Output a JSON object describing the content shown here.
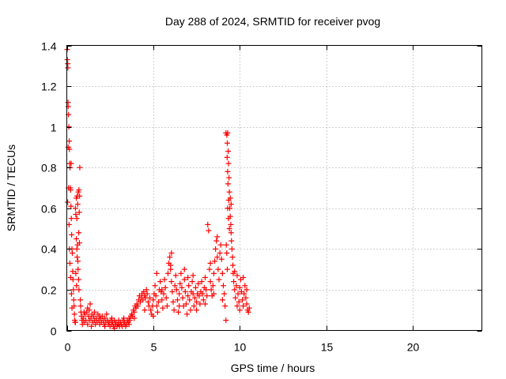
{
  "chart_data": {
    "type": "scatter",
    "title": "Day 288 of 2024, SRMTID for receiver pvog",
    "xlabel": "GPS time / hours",
    "ylabel": "SRMTID / TECUs",
    "xlim": [
      0,
      24
    ],
    "ylim": [
      0,
      1.4
    ],
    "xticks": [
      0,
      5,
      10,
      15,
      20
    ],
    "xtick_labels": [
      "0",
      "5",
      "10",
      "15",
      "20"
    ],
    "yticks": [
      0,
      0.2,
      0.4,
      0.6,
      0.8,
      1,
      1.2,
      1.4
    ],
    "ytick_labels": [
      "0",
      "0.2",
      "0.4",
      "0.6",
      "0.8",
      "1",
      "1.2",
      "1.4"
    ],
    "grid": true,
    "marker": "+",
    "marker_color": "#ff0000",
    "series": [
      {
        "name": "SRMTID",
        "points": [
          [
            0.02,
            1.38
          ],
          [
            0.03,
            1.33
          ],
          [
            0.05,
            1.31
          ],
          [
            0.06,
            1.29
          ],
          [
            0.07,
            1.12
          ],
          [
            0.08,
            1.1
          ],
          [
            0.1,
            1.06
          ],
          [
            0.12,
            1.0
          ],
          [
            0.14,
            0.93
          ],
          [
            0.15,
            0.89
          ],
          [
            0.17,
            0.82
          ],
          [
            0.18,
            0.8
          ],
          [
            0.2,
            0.7
          ],
          [
            0.22,
            0.69
          ],
          [
            0.24,
            0.61
          ],
          [
            0.26,
            0.55
          ],
          [
            0.28,
            0.47
          ],
          [
            0.3,
            0.4
          ],
          [
            0.32,
            0.38
          ],
          [
            0.34,
            0.29
          ],
          [
            0.36,
            0.25
          ],
          [
            0.38,
            0.2
          ],
          [
            0.4,
            0.15
          ],
          [
            0.42,
            0.12
          ],
          [
            0.44,
            0.08
          ],
          [
            0.46,
            0.05
          ],
          [
            0.48,
            0.04
          ],
          [
            0.5,
            0.04
          ],
          [
            0.05,
            0.63
          ],
          [
            0.08,
            0.9
          ],
          [
            0.1,
            0.7
          ],
          [
            0.13,
            0.52
          ],
          [
            0.15,
            0.4
          ],
          [
            0.18,
            0.33
          ],
          [
            0.22,
            0.26
          ],
          [
            0.25,
            0.82
          ],
          [
            0.27,
            0.18
          ],
          [
            0.3,
            0.11
          ],
          [
            0.5,
            0.6
          ],
          [
            0.52,
            0.57
          ],
          [
            0.55,
            0.65
          ],
          [
            0.58,
            0.55
          ],
          [
            0.6,
            0.66
          ],
          [
            0.63,
            0.62
          ],
          [
            0.66,
            0.68
          ],
          [
            0.7,
            0.69
          ],
          [
            0.72,
            0.58
          ],
          [
            0.74,
            0.66
          ],
          [
            0.55,
            0.45
          ],
          [
            0.58,
            0.4
          ],
          [
            0.6,
            0.36
          ],
          [
            0.62,
            0.42
          ],
          [
            0.65,
            0.3
          ],
          [
            0.68,
            0.25
          ],
          [
            0.7,
            0.2
          ],
          [
            0.75,
            0.8
          ],
          [
            0.78,
            0.15
          ],
          [
            0.8,
            0.12
          ],
          [
            0.82,
            0.09
          ],
          [
            0.85,
            0.07
          ],
          [
            0.88,
            0.05
          ],
          [
            0.9,
            0.03
          ],
          [
            0.52,
            0.28
          ],
          [
            0.56,
            0.22
          ],
          [
            0.64,
            0.34
          ],
          [
            0.69,
            0.48
          ],
          [
            0.73,
            0.43
          ],
          [
            0.95,
            0.06
          ],
          [
            1.0,
            0.04
          ],
          [
            1.05,
            0.08
          ],
          [
            1.1,
            0.05
          ],
          [
            1.15,
            0.09
          ],
          [
            1.2,
            0.03
          ],
          [
            1.25,
            0.07
          ],
          [
            1.3,
            0.1
          ],
          [
            1.35,
            0.13
          ],
          [
            1.4,
            0.06
          ],
          [
            1.45,
            0.08
          ],
          [
            1.5,
            0.04
          ],
          [
            1.55,
            0.07
          ],
          [
            1.6,
            0.05
          ],
          [
            1.65,
            0.03
          ],
          [
            1.7,
            0.06
          ],
          [
            1.75,
            0.04
          ],
          [
            1.8,
            0.08
          ],
          [
            1.85,
            0.05
          ],
          [
            1.9,
            0.03
          ],
          [
            1.95,
            0.06
          ],
          [
            2.0,
            0.04
          ],
          [
            2.05,
            0.07
          ],
          [
            2.1,
            0.05
          ],
          [
            2.15,
            0.03
          ],
          [
            2.2,
            0.06
          ],
          [
            2.25,
            0.04
          ],
          [
            2.3,
            0.08
          ],
          [
            2.35,
            0.05
          ],
          [
            2.4,
            0.03
          ],
          [
            2.45,
            0.04
          ],
          [
            2.5,
            0.02
          ],
          [
            2.55,
            0.05
          ],
          [
            2.6,
            0.03
          ],
          [
            2.65,
            0.04
          ],
          [
            2.7,
            0.02
          ],
          [
            2.75,
            0.05
          ],
          [
            2.8,
            0.03
          ],
          [
            2.85,
            0.04
          ],
          [
            2.9,
            0.02
          ],
          [
            2.95,
            0.03
          ],
          [
            3.0,
            0.05
          ],
          [
            3.05,
            0.02
          ],
          [
            3.1,
            0.04
          ],
          [
            3.15,
            0.03
          ],
          [
            3.2,
            0.02
          ],
          [
            3.25,
            0.05
          ],
          [
            3.3,
            0.03
          ],
          [
            3.35,
            0.04
          ],
          [
            3.4,
            0.02
          ],
          [
            3.45,
            0.03
          ],
          [
            3.5,
            0.05
          ],
          [
            3.55,
            0.04
          ],
          [
            3.6,
            0.06
          ],
          [
            3.65,
            0.05
          ],
          [
            3.7,
            0.07
          ],
          [
            3.75,
            0.08
          ],
          [
            3.8,
            0.07
          ],
          [
            3.85,
            0.1
          ],
          [
            3.9,
            0.09
          ],
          [
            3.95,
            0.12
          ],
          [
            4.0,
            0.11
          ],
          [
            4.05,
            0.13
          ],
          [
            4.1,
            0.12
          ],
          [
            1.0,
            0.09
          ],
          [
            1.2,
            0.11
          ],
          [
            1.3,
            0.05
          ],
          [
            1.6,
            0.09
          ],
          [
            1.9,
            0.07
          ],
          [
            2.2,
            0.02
          ],
          [
            2.6,
            0.06
          ],
          [
            3.0,
            0.03
          ],
          [
            3.3,
            0.06
          ],
          [
            3.6,
            0.03
          ],
          [
            3.9,
            0.06
          ],
          [
            1.42,
            0.02
          ],
          [
            2.75,
            0.01
          ],
          [
            4.15,
            0.15
          ],
          [
            4.2,
            0.17
          ],
          [
            4.25,
            0.14
          ],
          [
            4.3,
            0.16
          ],
          [
            4.35,
            0.18
          ],
          [
            4.4,
            0.15
          ],
          [
            4.45,
            0.19
          ],
          [
            4.5,
            0.17
          ],
          [
            4.55,
            0.16
          ],
          [
            4.6,
            0.2
          ],
          [
            4.65,
            0.18
          ],
          [
            4.7,
            0.14
          ],
          [
            4.75,
            0.12
          ],
          [
            4.8,
            0.16
          ],
          [
            4.85,
            0.1
          ],
          [
            4.9,
            0.08
          ],
          [
            4.95,
            0.12
          ],
          [
            5.0,
            0.15
          ],
          [
            5.05,
            0.18
          ],
          [
            5.1,
            0.22
          ],
          [
            5.15,
            0.17
          ],
          [
            5.2,
            0.12
          ],
          [
            5.25,
            0.09
          ],
          [
            5.3,
            0.14
          ],
          [
            5.35,
            0.2
          ],
          [
            5.4,
            0.24
          ],
          [
            5.45,
            0.19
          ],
          [
            5.5,
            0.15
          ],
          [
            5.55,
            0.11
          ],
          [
            5.6,
            0.18
          ],
          [
            5.65,
            0.25
          ],
          [
            5.7,
            0.21
          ],
          [
            5.75,
            0.16
          ],
          [
            5.8,
            0.12
          ],
          [
            5.85,
            0.28
          ],
          [
            5.9,
            0.33
          ],
          [
            5.95,
            0.36
          ],
          [
            6.0,
            0.3
          ],
          [
            6.05,
            0.24
          ],
          [
            6.1,
            0.19
          ],
          [
            6.15,
            0.14
          ],
          [
            6.2,
            0.1
          ],
          [
            6.25,
            0.22
          ],
          [
            6.3,
            0.27
          ],
          [
            6.35,
            0.2
          ],
          [
            6.4,
            0.15
          ],
          [
            6.45,
            0.09
          ],
          [
            6.5,
            0.18
          ],
          [
            6.55,
            0.23
          ],
          [
            6.6,
            0.28
          ],
          [
            6.65,
            0.21
          ],
          [
            6.7,
            0.16
          ],
          [
            6.75,
            0.12
          ],
          [
            6.8,
            0.25
          ],
          [
            6.85,
            0.19
          ],
          [
            6.9,
            0.13
          ],
          [
            6.95,
            0.08
          ],
          [
            7.0,
            0.17
          ],
          [
            7.05,
            0.22
          ],
          [
            7.1,
            0.15
          ],
          [
            7.15,
            0.1
          ],
          [
            7.2,
            0.19
          ],
          [
            7.25,
            0.24
          ],
          [
            7.3,
            0.18
          ],
          [
            7.35,
            0.12
          ],
          [
            7.4,
            0.16
          ],
          [
            7.45,
            0.21
          ],
          [
            7.5,
            0.14
          ],
          [
            7.55,
            0.18
          ],
          [
            7.6,
            0.23
          ],
          [
            7.65,
            0.17
          ],
          [
            7.7,
            0.13
          ],
          [
            7.75,
            0.19
          ],
          [
            7.8,
            0.24
          ],
          [
            7.85,
            0.18
          ],
          [
            7.9,
            0.15
          ],
          [
            7.95,
            0.21
          ],
          [
            8.0,
            0.26
          ],
          [
            8.05,
            0.2
          ],
          [
            8.1,
            0.17
          ],
          [
            8.15,
            0.52
          ],
          [
            8.2,
            0.49
          ],
          [
            8.25,
            0.3
          ],
          [
            8.3,
            0.24
          ],
          [
            8.35,
            0.2
          ],
          [
            8.4,
            0.17
          ],
          [
            8.45,
            0.22
          ],
          [
            8.5,
            0.28
          ],
          [
            8.55,
            0.34
          ],
          [
            8.6,
            0.4
          ],
          [
            8.65,
            0.44
          ],
          [
            8.7,
            0.36
          ],
          [
            8.75,
            0.3
          ],
          [
            8.8,
            0.25
          ],
          [
            8.85,
            0.38
          ],
          [
            8.9,
            0.42
          ],
          [
            8.95,
            0.35
          ],
          [
            9.0,
            0.28
          ],
          [
            9.05,
            0.22
          ],
          [
            9.1,
            0.18
          ],
          [
            9.15,
            0.12
          ],
          [
            9.2,
            0.05
          ],
          [
            5.0,
            0.07
          ],
          [
            5.5,
            0.2
          ],
          [
            6.0,
            0.32
          ],
          [
            6.5,
            0.12
          ],
          [
            7.0,
            0.26
          ],
          [
            7.5,
            0.1
          ],
          [
            8.0,
            0.13
          ],
          [
            8.5,
            0.18
          ],
          [
            9.0,
            0.15
          ],
          [
            4.5,
            0.1
          ],
          [
            5.2,
            0.28
          ],
          [
            6.8,
            0.3
          ],
          [
            7.3,
            0.27
          ],
          [
            8.3,
            0.33
          ],
          [
            8.7,
            0.46
          ],
          [
            6.05,
            0.38
          ],
          [
            9.2,
            0.97
          ],
          [
            9.25,
            0.96
          ],
          [
            9.3,
            0.97
          ],
          [
            9.28,
            0.92
          ],
          [
            9.33,
            0.88
          ],
          [
            9.27,
            0.85
          ],
          [
            9.35,
            0.82
          ],
          [
            9.3,
            0.78
          ],
          [
            9.38,
            0.75
          ],
          [
            9.32,
            0.72
          ],
          [
            9.4,
            0.68
          ],
          [
            9.36,
            0.64
          ],
          [
            9.42,
            0.6
          ],
          [
            9.45,
            0.56
          ],
          [
            9.48,
            0.52
          ],
          [
            9.5,
            0.48
          ],
          [
            9.52,
            0.44
          ],
          [
            9.55,
            0.4
          ],
          [
            9.58,
            0.36
          ],
          [
            9.6,
            0.32
          ],
          [
            9.62,
            0.28
          ],
          [
            9.3,
            0.6
          ],
          [
            9.35,
            0.55
          ],
          [
            9.4,
            0.5
          ],
          [
            9.45,
            0.65
          ],
          [
            9.5,
            0.62
          ],
          [
            9.22,
            0.42
          ],
          [
            9.25,
            0.38
          ],
          [
            9.28,
            0.3
          ],
          [
            9.65,
            0.24
          ],
          [
            9.7,
            0.2
          ],
          [
            9.75,
            0.16
          ],
          [
            9.8,
            0.22
          ],
          [
            9.85,
            0.27
          ],
          [
            9.9,
            0.18
          ],
          [
            9.95,
            0.14
          ],
          [
            10.0,
            0.21
          ],
          [
            10.05,
            0.25
          ],
          [
            10.1,
            0.19
          ],
          [
            10.15,
            0.15
          ],
          [
            10.2,
            0.12
          ],
          [
            10.25,
            0.18
          ],
          [
            10.3,
            0.22
          ],
          [
            10.35,
            0.16
          ],
          [
            10.4,
            0.13
          ],
          [
            10.45,
            0.1
          ],
          [
            10.5,
            0.09
          ],
          [
            10.55,
            0.11
          ],
          [
            9.7,
            0.29
          ],
          [
            9.85,
            0.12
          ],
          [
            10.0,
            0.1
          ],
          [
            10.2,
            0.26
          ],
          [
            10.4,
            0.2
          ]
        ]
      }
    ]
  }
}
